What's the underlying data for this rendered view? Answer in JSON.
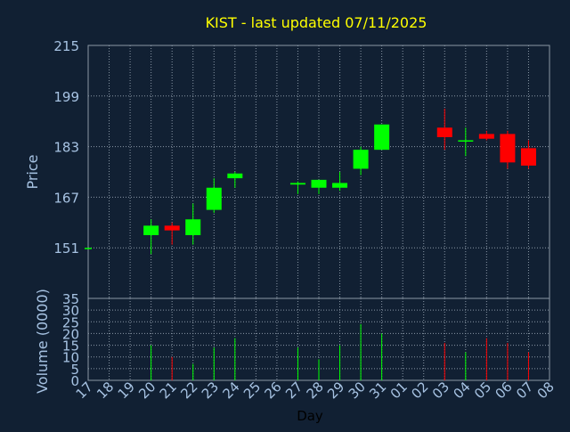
{
  "chart_data": {
    "type": "candlestick",
    "title": "KIST - last updated 07/11/2025",
    "xlabel": "Day",
    "price_panel": {
      "ylabel": "Price",
      "ylim": [
        135,
        215
      ],
      "yticks": [
        151,
        167,
        183,
        199,
        215
      ]
    },
    "volume_panel": {
      "ylabel": "Volume (0000)",
      "ylim": [
        0,
        35
      ],
      "yticks": [
        0,
        5,
        10,
        15,
        20,
        25,
        30,
        35
      ]
    },
    "x_tick_labels": [
      "17",
      "18",
      "19",
      "20",
      "21",
      "22",
      "23",
      "24",
      "25",
      "26",
      "27",
      "28",
      "29",
      "30",
      "31",
      "01",
      "02",
      "03",
      "04",
      "05",
      "06",
      "07",
      "08"
    ],
    "grid": true,
    "candles": [
      {
        "day": "17",
        "open": 151,
        "high": 151,
        "low": 151,
        "close": 151,
        "volume": 0
      },
      {
        "day": "20",
        "open": 155,
        "high": 160,
        "low": 149,
        "close": 158,
        "volume": 15
      },
      {
        "day": "21",
        "open": 158,
        "high": 159,
        "low": 152,
        "close": 156.5,
        "volume": 10
      },
      {
        "day": "22",
        "open": 155,
        "high": 165,
        "low": 152,
        "close": 160,
        "volume": 7
      },
      {
        "day": "23",
        "open": 163,
        "high": 173,
        "low": 162,
        "close": 170,
        "volume": 14
      },
      {
        "day": "24",
        "open": 173,
        "high": 175,
        "low": 170,
        "close": 174.5,
        "volume": 18
      },
      {
        "day": "27",
        "open": 171,
        "high": 172,
        "low": 168,
        "close": 171.5,
        "volume": 14
      },
      {
        "day": "28",
        "open": 170,
        "high": 172.5,
        "low": 168,
        "close": 172.5,
        "volume": 9
      },
      {
        "day": "29",
        "open": 170,
        "high": 175,
        "low": 169,
        "close": 171.5,
        "volume": 15
      },
      {
        "day": "30",
        "open": 176,
        "high": 183,
        "low": 174,
        "close": 182,
        "volume": 24
      },
      {
        "day": "31",
        "open": 182,
        "high": 190,
        "low": 182,
        "close": 190,
        "volume": 20
      },
      {
        "day": "03",
        "open": 189,
        "high": 195,
        "low": 182,
        "close": 186,
        "volume": 16
      },
      {
        "day": "04",
        "open": 185,
        "high": 189,
        "low": 180,
        "close": 185,
        "volume": 12
      },
      {
        "day": "05",
        "open": 187,
        "high": 188,
        "low": 185,
        "close": 185.5,
        "volume": 18
      },
      {
        "day": "06",
        "open": 187,
        "high": 188,
        "low": 176,
        "close": 178,
        "volume": 16
      },
      {
        "day": "07",
        "open": 182.5,
        "high": 185,
        "low": 176,
        "close": 177,
        "volume": 12
      }
    ],
    "colors": {
      "background": "#112033",
      "grid": "#8a97a6",
      "axis_text": "#a7c3e3",
      "title": "#ffff00",
      "up": "#00ff00",
      "down": "#ff0000"
    }
  }
}
